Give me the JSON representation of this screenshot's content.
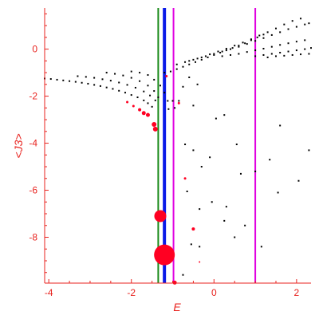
{
  "chart_data": {
    "type": "scatter",
    "title": "",
    "xlabel": "E",
    "ylabel": "<J3>",
    "xlim": [
      -4.1,
      2.35
    ],
    "ylim": [
      -9.95,
      1.75
    ],
    "xticks": [
      -4,
      -2,
      0,
      2
    ],
    "yticks": [
      0,
      -2,
      -4,
      -6,
      -8
    ],
    "grid": false,
    "colors": {
      "axis": "#e8231f",
      "black_points": "#000000",
      "red_points": "#ff0022",
      "green_line": "#1a8a1a",
      "blue_line": "#0a1ae8",
      "magenta_line": "#e000e0"
    },
    "vertical_lines": [
      {
        "color": "green",
        "x": -1.35
      },
      {
        "color": "blue",
        "x": -1.2
      },
      {
        "color": "magenta",
        "x": -0.98
      },
      {
        "color": "magenta",
        "x": 1.0
      }
    ],
    "black_points": [
      [
        -4.1,
        -1.25
      ],
      [
        -3.95,
        -1.27
      ],
      [
        -3.8,
        -1.3
      ],
      [
        -3.65,
        -1.33
      ],
      [
        -3.5,
        -1.36
      ],
      [
        -3.35,
        -1.39
      ],
      [
        -3.2,
        -1.43
      ],
      [
        -3.05,
        -1.47
      ],
      [
        -2.9,
        -1.52
      ],
      [
        -2.75,
        -1.57
      ],
      [
        -2.6,
        -1.63
      ],
      [
        -2.45,
        -1.69
      ],
      [
        -2.3,
        -1.77
      ],
      [
        -2.15,
        -1.85
      ],
      [
        -2.0,
        -1.95
      ],
      [
        -1.85,
        -2.05
      ],
      [
        -1.7,
        -2.18
      ],
      [
        -1.6,
        -2.3
      ],
      [
        -1.5,
        -2.45
      ],
      [
        -3.3,
        -1.15
      ],
      [
        -3.1,
        -1.18
      ],
      [
        -2.9,
        -1.22
      ],
      [
        -2.7,
        -1.28
      ],
      [
        -2.5,
        -1.34
      ],
      [
        -2.3,
        -1.42
      ],
      [
        -2.1,
        -1.52
      ],
      [
        -1.9,
        -1.64
      ],
      [
        -1.7,
        -1.8
      ],
      [
        -1.55,
        -1.97
      ],
      [
        -1.42,
        -2.18
      ],
      [
        -2.6,
        -1.0
      ],
      [
        -2.4,
        -1.05
      ],
      [
        -2.2,
        -1.12
      ],
      [
        -2.0,
        -1.22
      ],
      [
        -1.8,
        -1.36
      ],
      [
        -1.6,
        -1.55
      ],
      [
        -1.45,
        -1.78
      ],
      [
        -1.35,
        -2.05
      ],
      [
        -2.0,
        -0.95
      ],
      [
        -1.8,
        -1.0
      ],
      [
        -1.6,
        -1.1
      ],
      [
        -1.45,
        -1.3
      ],
      [
        -1.3,
        -1.55
      ],
      [
        -1.2,
        -1.85
      ],
      [
        -1.12,
        -2.2
      ],
      [
        -1.1,
        -2.55
      ],
      [
        -1.2,
        -1.0
      ],
      [
        -1.05,
        -0.95
      ],
      [
        -0.9,
        -0.85
      ],
      [
        -0.75,
        -0.75
      ],
      [
        -0.6,
        -0.65
      ],
      [
        -0.45,
        -0.55
      ],
      [
        -0.3,
        -0.45
      ],
      [
        -0.15,
        -0.35
      ],
      [
        0.0,
        -0.25
      ],
      [
        0.15,
        -0.15
      ],
      [
        0.3,
        -0.05
      ],
      [
        0.45,
        0.05
      ],
      [
        0.6,
        0.15
      ],
      [
        0.75,
        0.25
      ],
      [
        0.9,
        0.38
      ],
      [
        1.05,
        0.5
      ],
      [
        1.2,
        0.62
      ],
      [
        -0.9,
        -0.65
      ],
      [
        -0.7,
        -0.55
      ],
      [
        -0.5,
        -0.45
      ],
      [
        -0.3,
        -0.35
      ],
      [
        -0.1,
        -0.22
      ],
      [
        0.1,
        -0.1
      ],
      [
        0.3,
        0.02
      ],
      [
        0.5,
        0.15
      ],
      [
        0.7,
        0.28
      ],
      [
        0.9,
        0.42
      ],
      [
        1.1,
        0.58
      ],
      [
        1.3,
        0.72
      ],
      [
        1.5,
        0.88
      ],
      [
        1.7,
        1.05
      ],
      [
        1.9,
        1.2
      ],
      [
        2.1,
        1.3
      ],
      [
        -0.6,
        -0.5
      ],
      [
        -0.4,
        -0.4
      ],
      [
        -0.2,
        -0.3
      ],
      [
        0.0,
        -0.2
      ],
      [
        0.2,
        -0.1
      ],
      [
        0.4,
        0.0
      ],
      [
        0.6,
        0.1
      ],
      [
        0.8,
        0.22
      ],
      [
        1.0,
        0.35
      ],
      [
        1.2,
        0.47
      ],
      [
        1.4,
        0.6
      ],
      [
        1.6,
        0.72
      ],
      [
        1.8,
        0.85
      ],
      [
        2.0,
        0.95
      ],
      [
        2.2,
        1.05
      ],
      [
        2.3,
        1.1
      ],
      [
        0.2,
        -0.3
      ],
      [
        0.4,
        -0.25
      ],
      [
        0.6,
        -0.2
      ],
      [
        0.8,
        -0.12
      ],
      [
        1.0,
        -0.05
      ],
      [
        1.2,
        0.02
      ],
      [
        1.4,
        0.1
      ],
      [
        1.6,
        0.18
      ],
      [
        1.8,
        0.25
      ],
      [
        2.0,
        0.32
      ],
      [
        2.2,
        0.38
      ],
      [
        1.0,
        -0.3
      ],
      [
        1.2,
        -0.25
      ],
      [
        1.4,
        -0.2
      ],
      [
        1.6,
        -0.15
      ],
      [
        1.8,
        -0.1
      ],
      [
        2.0,
        -0.05
      ],
      [
        2.2,
        0.0
      ],
      [
        2.35,
        0.05
      ],
      [
        1.3,
        -0.35
      ],
      [
        1.5,
        -0.3
      ],
      [
        1.7,
        -0.28
      ],
      [
        1.9,
        -0.25
      ],
      [
        2.1,
        -0.22
      ],
      [
        2.3,
        -0.2
      ],
      [
        -1.0,
        -2.2
      ],
      [
        -0.95,
        -2.5
      ],
      [
        -0.85,
        -2.2
      ],
      [
        -0.75,
        -1.6
      ],
      [
        -0.6,
        -1.2
      ],
      [
        -0.5,
        -2.4
      ],
      [
        -0.4,
        -1.5
      ],
      [
        -0.7,
        -4.05
      ],
      [
        -0.5,
        -4.3
      ],
      [
        -0.3,
        -5.0
      ],
      [
        -0.1,
        -4.6
      ],
      [
        0.05,
        -2.95
      ],
      [
        0.25,
        -2.8
      ],
      [
        0.55,
        -4.05
      ],
      [
        0.75,
        -7.5
      ],
      [
        1.15,
        -8.4
      ],
      [
        1.6,
        -3.25
      ],
      [
        2.05,
        -5.6
      ],
      [
        2.3,
        -4.3
      ],
      [
        -0.65,
        -6.05
      ],
      [
        -0.35,
        -6.8
      ],
      [
        -0.05,
        -6.5
      ],
      [
        0.3,
        -6.7
      ],
      [
        0.65,
        -5.3
      ],
      [
        1.0,
        -5.2
      ],
      [
        1.35,
        -4.7
      ],
      [
        1.55,
        -6.1
      ],
      [
        -0.75,
        -9.6
      ],
      [
        0.25,
        -7.3
      ],
      [
        0.5,
        -8.0
      ],
      [
        -0.35,
        -8.4
      ],
      [
        -0.55,
        -8.3
      ]
    ],
    "red_points": [
      {
        "x": -2.1,
        "y": -2.25,
        "r": 1.5
      },
      {
        "x": -1.95,
        "y": -2.42,
        "r": 1.5
      },
      {
        "x": -1.8,
        "y": -2.58,
        "r": 2.0
      },
      {
        "x": -1.7,
        "y": -2.72,
        "r": 2.5
      },
      {
        "x": -1.6,
        "y": -2.8,
        "r": 2.5
      },
      {
        "x": -1.45,
        "y": -3.2,
        "r": 3.0
      },
      {
        "x": -1.42,
        "y": -3.4,
        "r": 3.0
      },
      {
        "x": -1.15,
        "y": -1.15,
        "r": 1.5
      },
      {
        "x": -0.85,
        "y": -2.3,
        "r": 1.5
      },
      {
        "x": -0.7,
        "y": -5.5,
        "r": 1.5
      },
      {
        "x": -0.5,
        "y": -7.65,
        "r": 2.0
      },
      {
        "x": -0.35,
        "y": -9.05,
        "r": 1.0
      },
      {
        "x": -1.3,
        "y": -7.1,
        "r": 7.5
      },
      {
        "x": -1.2,
        "y": -8.75,
        "r": 13.0
      },
      {
        "x": -0.95,
        "y": -9.93,
        "r": 2.5
      }
    ]
  }
}
